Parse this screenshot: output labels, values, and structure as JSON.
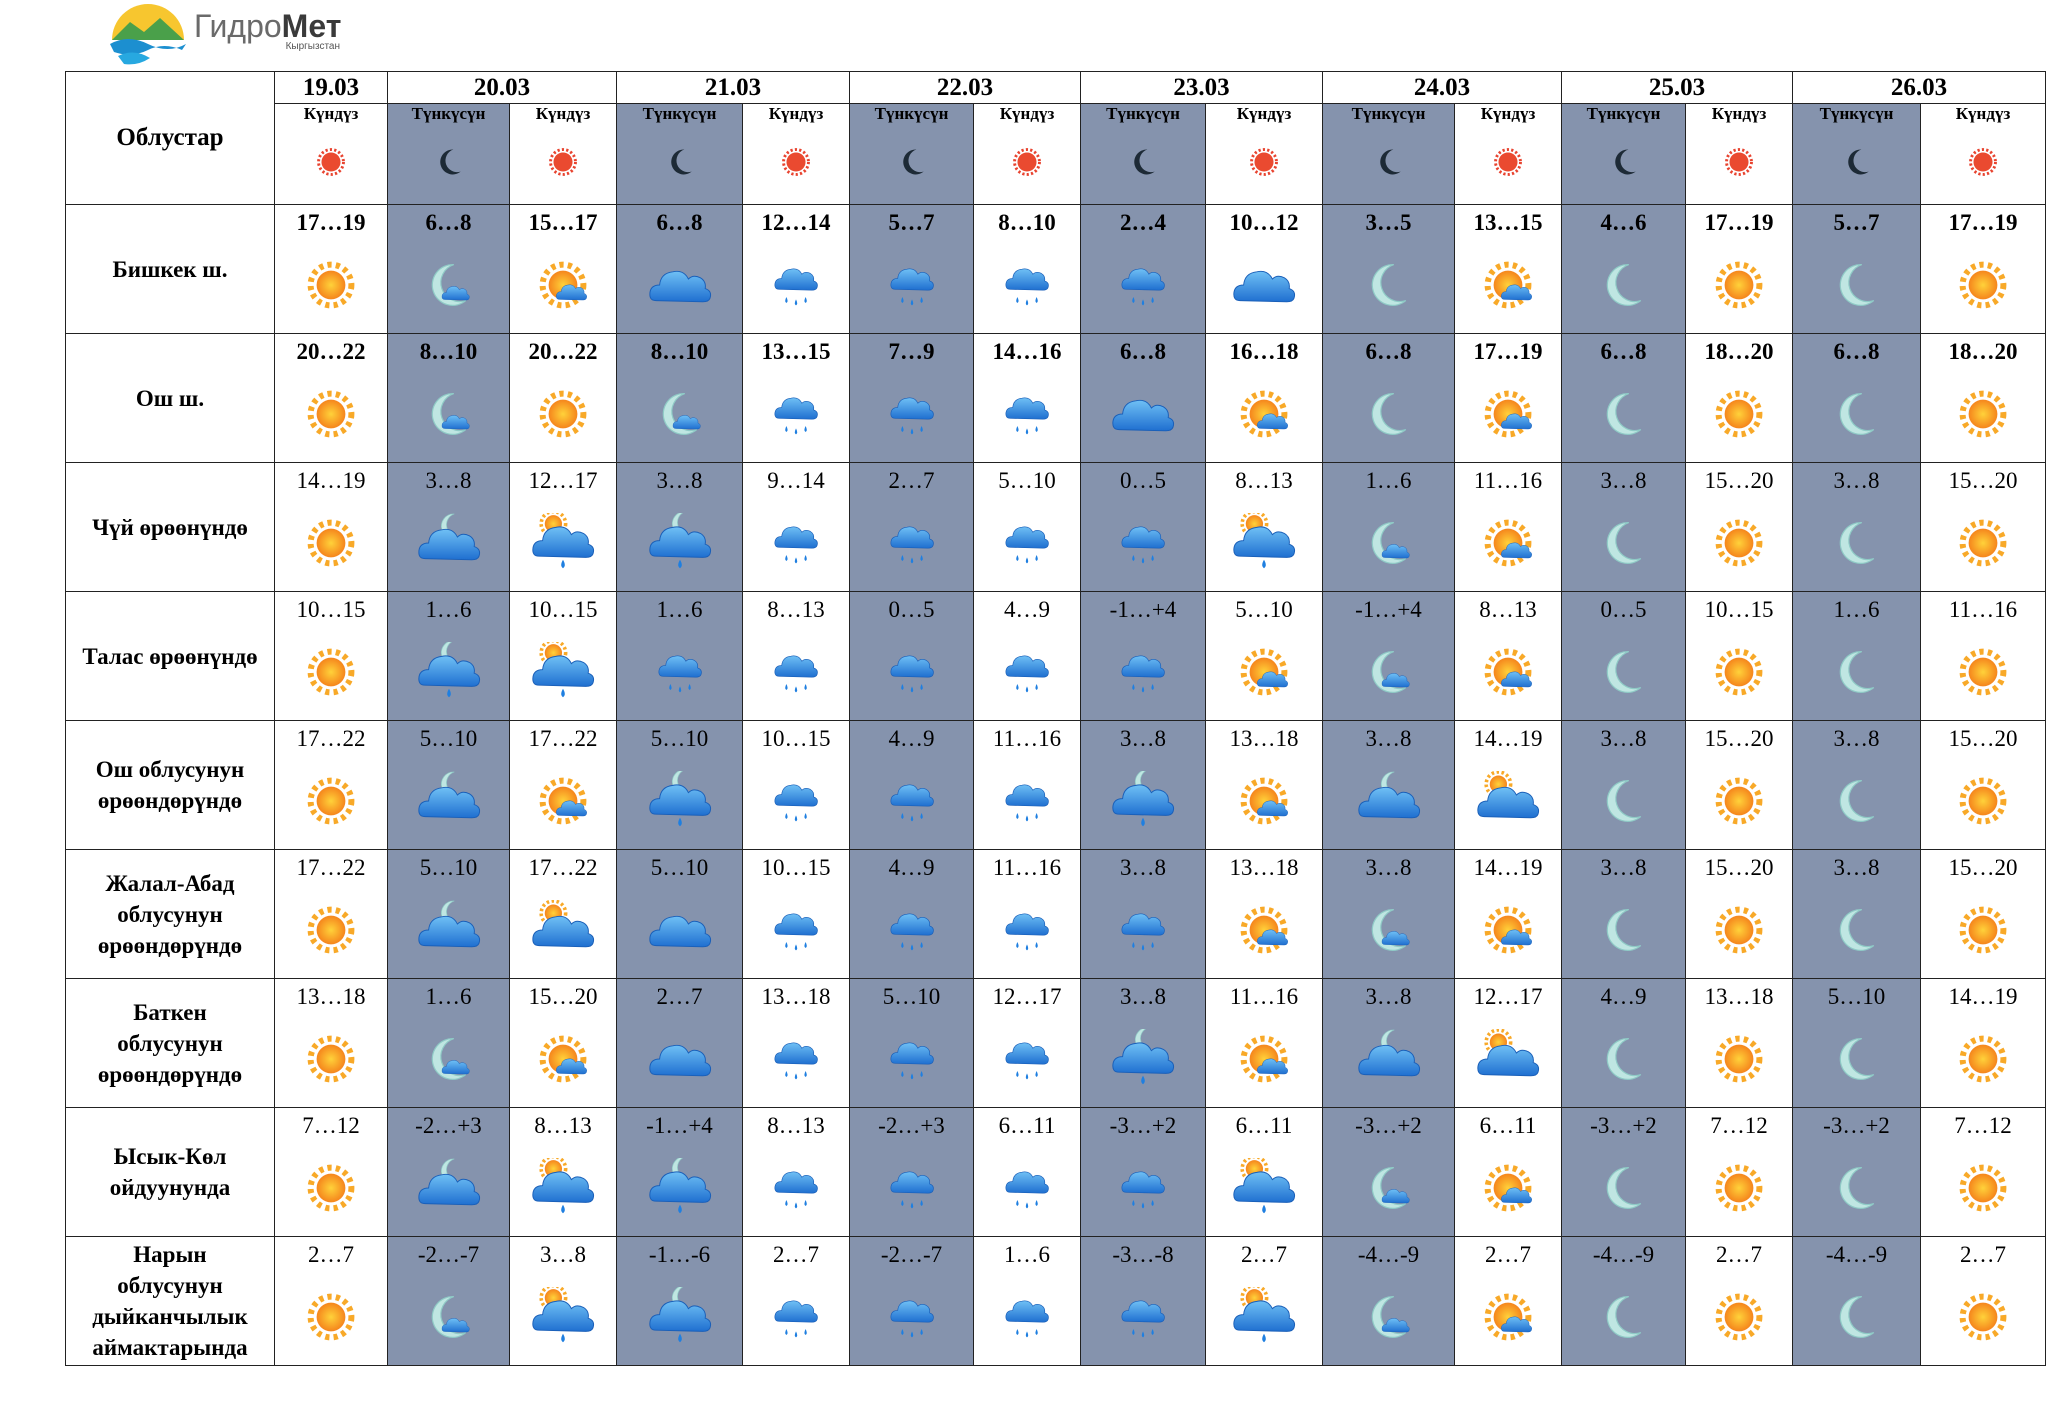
{
  "header": {
    "logo_main": "Гидро",
    "logo_bold": "Мет",
    "logo_sub": "Кыргызстан"
  },
  "table": {
    "corner": "Облустар",
    "dates": [
      "19.03",
      "20.03",
      "21.03",
      "22.03",
      "23.03",
      "24.03",
      "25.03",
      "26.03"
    ],
    "column_labels": [
      "Күндүз",
      "Түнкүсүн",
      "Күндүз",
      "Түнкүсүн",
      "Күндүз",
      "Түнкүсүн",
      "Күндүз",
      "Түнкүсүн",
      "Күндүз",
      "Түнкүсүн",
      "Күндүз",
      "Түнкүсүн",
      "Күндүз",
      "Түнкүсүн",
      "Күндүз"
    ],
    "rows": [
      {
        "name": "Бишкек ш.",
        "temps": [
          "17…19",
          "6…8",
          "15…17",
          "6…8",
          "12…14",
          "5…7",
          "8…10",
          "2…4",
          "10…12",
          "3…5",
          "13…15",
          "4…6",
          "17…19",
          "5…7",
          "17…19"
        ]
      },
      {
        "name": "Ош ш.",
        "temps": [
          "20…22",
          "8…10",
          "20…22",
          "8…10",
          "13…15",
          "7…9",
          "14…16",
          "6…8",
          "16…18",
          "6…8",
          "17…19",
          "6…8",
          "18…20",
          "6…8",
          "18…20"
        ]
      },
      {
        "name": "Чүй өрөөнүндө",
        "temps": [
          "14…19",
          "3…8",
          "12…17",
          "3…8",
          "9…14",
          "2…7",
          "5…10",
          "0…5",
          "8…13",
          "1…6",
          "11…16",
          "3…8",
          "15…20",
          "3…8",
          "15…20"
        ]
      },
      {
        "name": "Талас өрөөнүндө",
        "temps": [
          "10…15",
          "1…6",
          "10…15",
          "1…6",
          "8…13",
          "0…5",
          "4…9",
          "-1…+4",
          "5…10",
          "-1…+4",
          "8…13",
          "0…5",
          "10…15",
          "1…6",
          "11…16"
        ]
      },
      {
        "name": "Ош облусунун өрөөндөрүндө",
        "temps": [
          "17…22",
          "5…10",
          "17…22",
          "5…10",
          "10…15",
          "4…9",
          "11…16",
          "3…8",
          "13…18",
          "3…8",
          "14…19",
          "3…8",
          "15…20",
          "3…8",
          "15…20"
        ]
      },
      {
        "name": "Жалал-Абад облусунун өрөөндөрүндө",
        "temps": [
          "17…22",
          "5…10",
          "17…22",
          "5…10",
          "10…15",
          "4…9",
          "11…16",
          "3…8",
          "13…18",
          "3…8",
          "14…19",
          "3…8",
          "15…20",
          "3…8",
          "15…20"
        ]
      },
      {
        "name": "Баткен облусунун өрөөндөрүндө",
        "temps": [
          "13…18",
          "1…6",
          "15…20",
          "2…7",
          "13…18",
          "5…10",
          "12…17",
          "3…8",
          "11…16",
          "3…8",
          "12…17",
          "4…9",
          "13…18",
          "5…10",
          "14…19"
        ]
      },
      {
        "name": "Ысык-Көл ойдуунунда",
        "temps": [
          "7…12",
          "-2…+3",
          "8…13",
          "-1…+4",
          "8…13",
          "-2…+3",
          "6…11",
          "-3…+2",
          "6…11",
          "-3…+2",
          "6…11",
          "-3…+2",
          "7…12",
          "-3…+2",
          "7…12"
        ]
      },
      {
        "name": "Нарын облусунун дыйканчылык аймактарында",
        "temps": [
          "2…7",
          "-2…-7",
          "3…8",
          "-1…-6",
          "2…7",
          "-2…-7",
          "1…6",
          "-3…-8",
          "2…7",
          "-4…-9",
          "2…7",
          "-4…-9",
          "2…7",
          "-4…-9",
          "2…7"
        ]
      }
    ]
  }
}
